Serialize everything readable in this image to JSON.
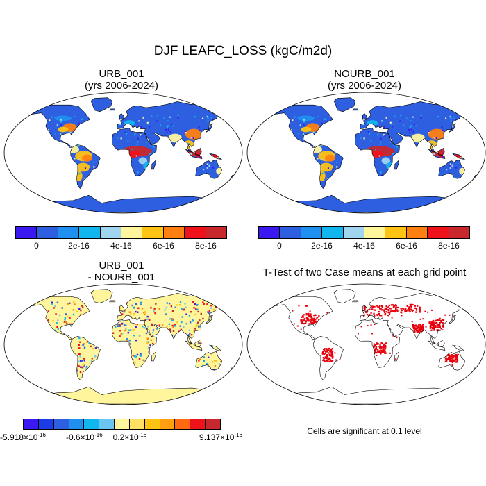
{
  "title": "DJF LEAFC_LOSS (kgC/m2d)",
  "panels": {
    "top_left": {
      "title_line1": "URB_001",
      "title_line2": "(yrs 2006-2024)"
    },
    "top_right": {
      "title_line1": "NOURB_001",
      "title_line2": "(yrs 2006-2024)"
    },
    "bottom_left": {
      "title_line1": "URB_001",
      "title_line2": "- NOURB_001"
    },
    "bottom_right": {
      "title": "T-Test of two Case means at each grid point"
    }
  },
  "colorbar_main": {
    "colors": [
      "#3a19f0",
      "#2e5fe0",
      "#1f8ff0",
      "#12b6ee",
      "#9fd5ee",
      "#fff59d",
      "#ffc314",
      "#ff7f10",
      "#f0121b",
      "#c8282b"
    ],
    "labels": [
      "0",
      "2e-16",
      "4e-16",
      "6e-16",
      "8e-16"
    ]
  },
  "colorbar_diff": {
    "colors": [
      "#3a19f0",
      "#1c3ce8",
      "#2e5fe0",
      "#1f8ff0",
      "#12b6ee",
      "#6cc5f0",
      "#fff59d",
      "#ffe066",
      "#ffc314",
      "#ff9f10",
      "#ff6a10",
      "#f0121b",
      "#c8282b"
    ],
    "labels": [
      {
        "mant": "-5.918×10",
        "exp": "-16"
      },
      {
        "mant": "-0.6×10",
        "exp": "-16"
      },
      {
        "mant": "0.2×10",
        "exp": "-16"
      },
      {
        "mant": "9.137×10",
        "exp": "-16"
      }
    ]
  },
  "significance_note": "Cells are significant at 0.1 level",
  "map_colors": {
    "land_base": "#2e5fe0",
    "diff_base": "#fff59d",
    "significant": "#e8000b",
    "ocean": "#ffffff"
  }
}
